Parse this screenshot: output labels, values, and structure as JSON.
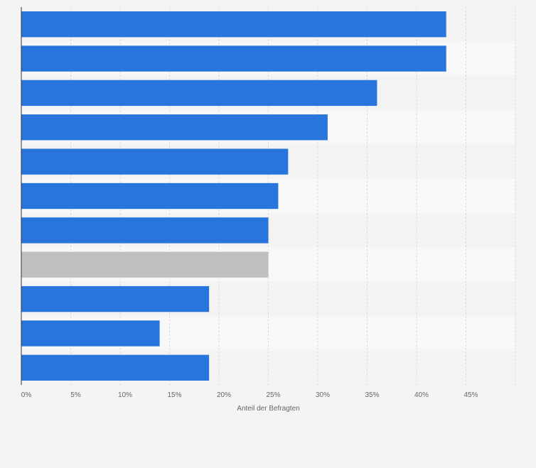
{
  "chart_data": {
    "type": "bar",
    "orientation": "horizontal",
    "title": "",
    "xlabel": "Anteil der Befragten",
    "ylabel": "",
    "xlim": [
      0,
      50
    ],
    "xticks": [
      {
        "value": 0,
        "label": "0%"
      },
      {
        "value": 5,
        "label": "5%"
      },
      {
        "value": 10,
        "label": "10%"
      },
      {
        "value": 15,
        "label": "15%"
      },
      {
        "value": 20,
        "label": "20%"
      },
      {
        "value": 25,
        "label": "25%"
      },
      {
        "value": 30,
        "label": "30%"
      },
      {
        "value": 35,
        "label": "35%"
      },
      {
        "value": 40,
        "label": "40%"
      },
      {
        "value": 45,
        "label": "45%"
      }
    ],
    "values": [
      43,
      43,
      36,
      31,
      27,
      26,
      25,
      25,
      19,
      14,
      19
    ],
    "highlight_index": 7,
    "grid": true,
    "colors": {
      "bar": "#2876dd",
      "highlight": "#c0c0c0",
      "band_dark": "#f3f3f3",
      "band_light": "#f8f8f8",
      "grid": "#dcdcdc",
      "axis": "#333333",
      "page": "#f4f4f4"
    }
  }
}
